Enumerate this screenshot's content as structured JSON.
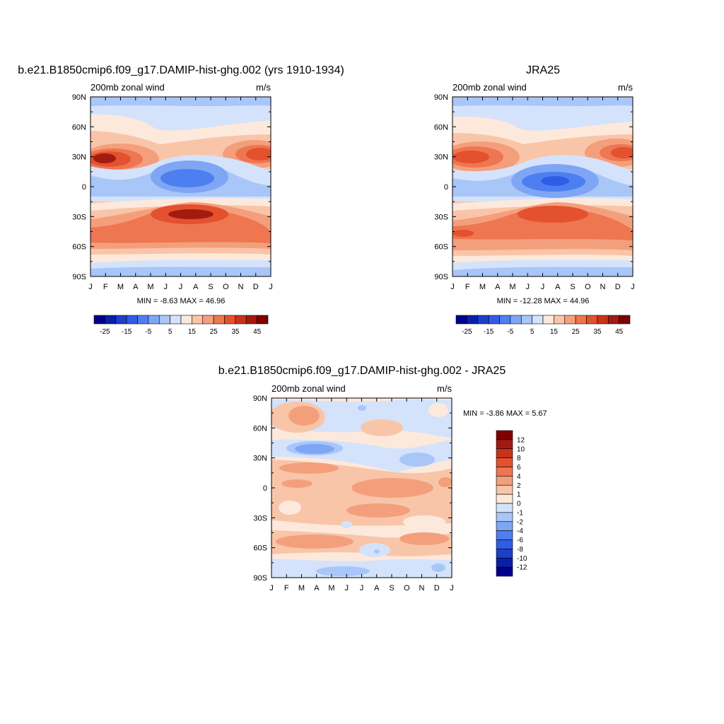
{
  "chart_data": [
    {
      "id": "model",
      "type": "contour",
      "title": "b.e21.B1850cmip6.f09_g17.DAMIP-hist-ghg.002 (yrs 1910-1934)",
      "left_label": "200mb zonal wind",
      "right_label": "m/s",
      "xticks": [
        "J",
        "F",
        "M",
        "A",
        "M",
        "J",
        "J",
        "A",
        "S",
        "O",
        "N",
        "D",
        "J"
      ],
      "yticks": [
        "90N",
        "60N",
        "30N",
        "0",
        "30S",
        "60S",
        "90S"
      ],
      "ylim": [
        -90,
        90
      ],
      "minmax": "MIN =  -8.63 MAX =  46.96",
      "colorbar": {
        "orientation": "horizontal",
        "levels": [
          -25,
          -20,
          -15,
          -10,
          -5,
          0,
          5,
          10,
          15,
          20,
          25,
          30,
          35,
          40,
          45
        ],
        "labels": [
          "-25",
          "-15",
          "-5",
          "5",
          "15",
          "25",
          "35",
          "45"
        ],
        "colors": [
          "#00008b",
          "#0a1fa8",
          "#1e3fc8",
          "#2e5ee6",
          "#4d7ff0",
          "#7fa6f5",
          "#a9c6f8",
          "#d4e3fb",
          "#fde9dc",
          "#f9c5a9",
          "#f49f7c",
          "#ee7650",
          "#e4512f",
          "#c8321b",
          "#a31a10",
          "#800000"
        ]
      },
      "features": [
        {
          "kind": "jet",
          "lat": 30,
          "month": 1.3,
          "value": 46.96
        },
        {
          "kind": "jet",
          "lat": 30,
          "month": 11.5,
          "value": 40
        },
        {
          "kind": "easterly",
          "lat": 5,
          "month": 6.5,
          "value": -8.63
        },
        {
          "kind": "jet",
          "lat": -30,
          "month": 7,
          "value": 45
        }
      ]
    },
    {
      "id": "obs",
      "type": "contour",
      "title": "JRA25",
      "left_label": "200mb zonal wind",
      "right_label": "m/s",
      "xticks": [
        "J",
        "F",
        "M",
        "A",
        "M",
        "J",
        "J",
        "A",
        "S",
        "O",
        "N",
        "D",
        "J"
      ],
      "yticks": [
        "90N",
        "60N",
        "30N",
        "0",
        "30S",
        "60S",
        "90S"
      ],
      "ylim": [
        -90,
        90
      ],
      "minmax": "MIN = -12.28 MAX =  44.96",
      "colorbar": {
        "orientation": "horizontal",
        "levels": [
          -25,
          -20,
          -15,
          -10,
          -5,
          0,
          5,
          10,
          15,
          20,
          25,
          30,
          35,
          40,
          45
        ],
        "labels": [
          "-25",
          "-15",
          "-5",
          "5",
          "15",
          "25",
          "35",
          "45"
        ],
        "colors": [
          "#00008b",
          "#0a1fa8",
          "#1e3fc8",
          "#2e5ee6",
          "#4d7ff0",
          "#7fa6f5",
          "#a9c6f8",
          "#d4e3fb",
          "#fde9dc",
          "#f9c5a9",
          "#f49f7c",
          "#ee7650",
          "#e4512f",
          "#c8321b",
          "#a31a10",
          "#800000"
        ]
      },
      "features": [
        {
          "kind": "jet",
          "lat": 30,
          "month": 1.3,
          "value": 44.96
        },
        {
          "kind": "jet",
          "lat": 30,
          "month": 11.5,
          "value": 42
        },
        {
          "kind": "easterly",
          "lat": 5,
          "month": 7,
          "value": -12.28
        },
        {
          "kind": "jet",
          "lat": -30,
          "month": 7.5,
          "value": 40
        }
      ]
    },
    {
      "id": "diff",
      "type": "contour",
      "title": "b.e21.B1850cmip6.f09_g17.DAMIP-hist-ghg.002 - JRA25",
      "left_label": "200mb zonal wind",
      "right_label": "m/s",
      "xticks": [
        "J",
        "F",
        "M",
        "A",
        "M",
        "J",
        "J",
        "A",
        "S",
        "O",
        "N",
        "D",
        "J"
      ],
      "yticks": [
        "90N",
        "60N",
        "30N",
        "0",
        "30S",
        "60S",
        "90S"
      ],
      "ylim": [
        -90,
        90
      ],
      "minmax": "MIN =  -3.86 MAX =   5.67",
      "colorbar": {
        "orientation": "vertical",
        "levels": [
          -12,
          -10,
          -8,
          -6,
          -4,
          -2,
          -1,
          0,
          1,
          2,
          4,
          6,
          8,
          10,
          12
        ],
        "labels": [
          "12",
          "10",
          "8",
          "6",
          "4",
          "2",
          "1",
          "0",
          "-1",
          "-2",
          "-4",
          "-6",
          "-8",
          "-10",
          "-12"
        ],
        "colors": [
          "#00008b",
          "#0a1fa8",
          "#1e3fc8",
          "#2e5ee6",
          "#4d7ff0",
          "#7fa6f5",
          "#a9c6f8",
          "#d4e3fb",
          "#fde9dc",
          "#f9c5a9",
          "#f49f7c",
          "#ee7650",
          "#e4512f",
          "#c8321b",
          "#a31a10",
          "#800000"
        ]
      }
    }
  ]
}
